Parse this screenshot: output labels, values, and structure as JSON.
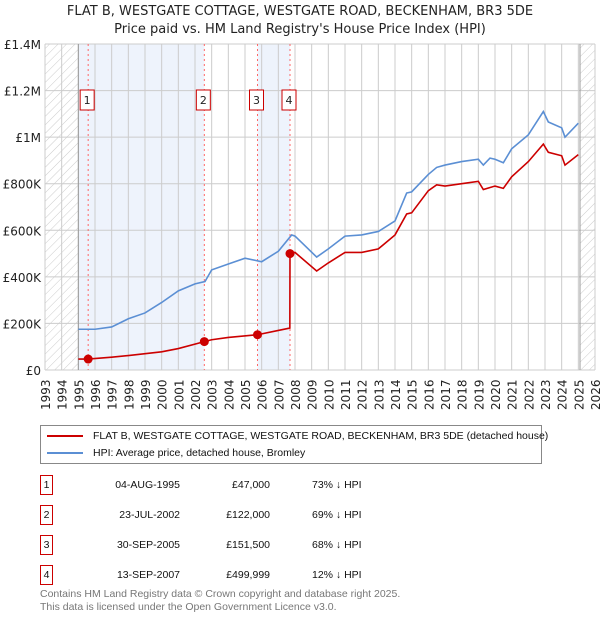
{
  "chart_data": {
    "type": "line",
    "title": "FLAT B, WESTGATE COTTAGE, WESTGATE ROAD, BECKENHAM, BR3 5DE",
    "subtitle": "Price paid vs. HM Land Registry's House Price Index (HPI)",
    "xlim": [
      1993,
      2026
    ],
    "ylim": [
      0,
      1400000
    ],
    "x_ticks": [
      "1993",
      "1994",
      "1995",
      "1996",
      "1997",
      "1998",
      "1999",
      "2000",
      "2001",
      "2002",
      "2003",
      "2004",
      "2005",
      "2006",
      "2007",
      "2008",
      "2009",
      "2010",
      "2011",
      "2012",
      "2013",
      "2014",
      "2015",
      "2016",
      "2017",
      "2018",
      "2019",
      "2020",
      "2021",
      "2022",
      "2023",
      "2024",
      "2025",
      "2026"
    ],
    "y_ticks": [
      {
        "v": 0,
        "label": "£0"
      },
      {
        "v": 200000,
        "label": "£200K"
      },
      {
        "v": 400000,
        "label": "£400K"
      },
      {
        "v": 600000,
        "label": "£600K"
      },
      {
        "v": 800000,
        "label": "£800K"
      },
      {
        "v": 1000000,
        "label": "£1M"
      },
      {
        "v": 1200000,
        "label": "£1.2M"
      },
      {
        "v": 1400000,
        "label": "£1.4M"
      }
    ],
    "grid": true,
    "data_range": [
      1995,
      2025.1
    ],
    "series": [
      {
        "name": "FLAT B, WESTGATE COTTAGE, WESTGATE ROAD, BECKENHAM, BR3 5DE (detached house)",
        "color": "#cc0000",
        "x": [
          1995.0,
          1995.59,
          1997,
          1998,
          2000,
          2001,
          2002.56,
          2003,
          2004,
          2005.75,
          2007,
          2007.69,
          2007.7,
          2008,
          2009.3,
          2010,
          2011,
          2012,
          2013,
          2014,
          2014.7,
          2015,
          2016,
          2016.5,
          2017,
          2018,
          2019,
          2019.3,
          2020,
          2020.5,
          2021,
          2022,
          2022.9,
          2023.2,
          2024,
          2024.2,
          2025
        ],
        "y": [
          47000,
          47000,
          55000,
          62000,
          78000,
          92000,
          122000,
          130000,
          140000,
          151500,
          170000,
          180000,
          499999,
          505000,
          425000,
          460000,
          505000,
          505000,
          520000,
          580000,
          670000,
          675000,
          770000,
          795000,
          790000,
          800000,
          810000,
          775000,
          790000,
          780000,
          830000,
          895000,
          970000,
          935000,
          920000,
          880000,
          925000
        ]
      },
      {
        "name": "HPI: Average price, detached house, Bromley",
        "color": "#5b8fd4",
        "x": [
          1995,
          1996,
          1997,
          1998,
          1999,
          2000,
          2001,
          2002,
          2002.6,
          2003,
          2004,
          2005,
          2006,
          2007,
          2007.8,
          2008,
          2009.3,
          2010,
          2011,
          2012,
          2013,
          2014,
          2014.7,
          2015,
          2016,
          2016.5,
          2017,
          2018,
          2019,
          2019.3,
          2019.7,
          2020,
          2020.5,
          2021,
          2022,
          2022.9,
          2023.2,
          2024,
          2024.2,
          2025
        ],
        "y": [
          175000,
          175000,
          185000,
          220000,
          245000,
          290000,
          340000,
          370000,
          380000,
          430000,
          455000,
          480000,
          465000,
          510000,
          580000,
          575000,
          485000,
          520000,
          575000,
          580000,
          595000,
          640000,
          760000,
          765000,
          840000,
          870000,
          880000,
          895000,
          905000,
          880000,
          910000,
          905000,
          890000,
          950000,
          1010000,
          1110000,
          1065000,
          1040000,
          1000000,
          1060000
        ]
      }
    ],
    "sales": [
      {
        "n": "1",
        "x": 1995.59,
        "date": "04-AUG-1995",
        "price": "£47,000",
        "value": 47000,
        "hpi": "73% ↓ HPI"
      },
      {
        "n": "2",
        "x": 2002.56,
        "date": "23-JUL-2002",
        "price": "£122,000",
        "value": 122000,
        "hpi": "69% ↓ HPI"
      },
      {
        "n": "3",
        "x": 2005.75,
        "date": "30-SEP-2005",
        "price": "£151,500",
        "value": 151500,
        "hpi": "68% ↓ HPI"
      },
      {
        "n": "4",
        "x": 2007.7,
        "date": "13-SEP-2007",
        "price": "£499,999",
        "value": 499999,
        "hpi": "12% ↓ HPI"
      }
    ],
    "legend_position": "below"
  },
  "footer": {
    "line1": "Contains HM Land Registry data © Crown copyright and database right 2025.",
    "line2": "This data is licensed under the Open Government Licence v3.0."
  }
}
